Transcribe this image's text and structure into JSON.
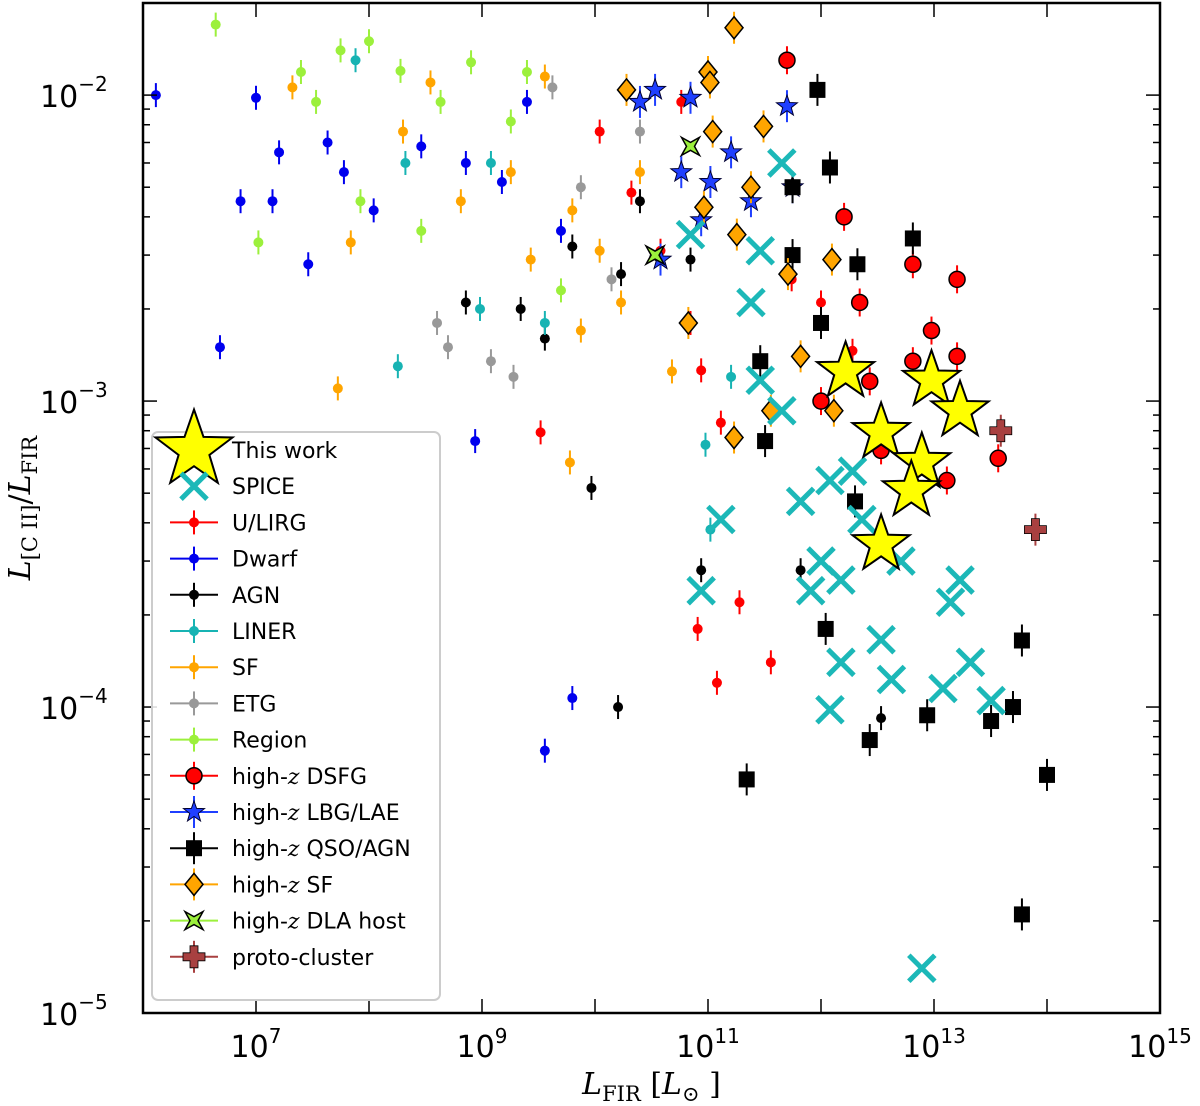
{
  "chart_data": {
    "type": "scatter",
    "xscale": "log",
    "yscale": "log",
    "xlim": [
      1000000.0,
      1000000000000000.0
    ],
    "ylim": [
      1e-05,
      0.02
    ],
    "grid": false,
    "legend_placement": "lower-left",
    "xlabel_parts": [
      {
        "t": "L",
        "i": true
      },
      {
        "t": "FIR",
        "sub": true
      },
      {
        "t": "  ["
      },
      {
        "t": "L",
        "i": true
      },
      {
        "t": "⊙",
        "sub": true
      },
      {
        "t": " ]"
      }
    ],
    "ylabel_parts": [
      {
        "t": "L",
        "i": true
      },
      {
        "t": "[C II]",
        "sub": true
      },
      {
        "t": "/"
      },
      {
        "t": "L",
        "i": true
      },
      {
        "t": "FIR",
        "sub": true
      }
    ],
    "xticks": [
      {
        "base": "10",
        "exp": "7",
        "v": 10000000.0
      },
      {
        "base": "10",
        "exp": "9",
        "v": 1000000000.0
      },
      {
        "base": "10",
        "exp": "11",
        "v": 100000000000.0
      },
      {
        "base": "10",
        "exp": "13",
        "v": 10000000000000.0
      },
      {
        "base": "10",
        "exp": "15",
        "v": 1000000000000000.0
      }
    ],
    "yticks": [
      {
        "base": "10",
        "exp": "−2",
        "v": 0.01
      },
      {
        "base": "10",
        "exp": "−3",
        "v": 0.001
      },
      {
        "base": "10",
        "exp": "−4",
        "v": 0.0001
      },
      {
        "base": "10",
        "exp": "−5",
        "v": 1e-05
      }
    ],
    "series": [
      {
        "name": "U/LIRG",
        "marker": "dot",
        "color": "#ff0000",
        "points": [
          [
            11000000000.0,
            0.0076
          ],
          [
            21000000000.0,
            0.0048
          ],
          [
            38000000000.0,
            0.0031
          ],
          [
            70000000000.0,
            0.0018
          ],
          [
            87000000000.0,
            0.00126
          ],
          [
            130000000000.0,
            0.00085
          ],
          [
            81000000000.0,
            0.00018
          ],
          [
            120000000000.0,
            0.00012
          ],
          [
            360000000000.0,
            0.00014
          ],
          [
            3300000000.0,
            0.00079
          ],
          [
            550000000000.0,
            0.0025
          ],
          [
            1000000000000.0,
            0.0021
          ],
          [
            1900000000000.0,
            0.00146
          ],
          [
            58000000000.0,
            0.0095
          ],
          [
            190000000000.0,
            0.00022
          ]
        ]
      },
      {
        "name": "Dwarf",
        "marker": "dot",
        "color": "#0000ee",
        "points": [
          [
            1300000.0,
            0.01
          ],
          [
            10000000.0,
            0.0098
          ],
          [
            16000000.0,
            0.0065
          ],
          [
            14000000.0,
            0.0045
          ],
          [
            29000000.0,
            0.0028
          ],
          [
            43000000.0,
            0.007
          ],
          [
            4800000.0,
            0.0015
          ],
          [
            870000000.0,
            0.00074
          ],
          [
            3600000000.0,
            7.2e-05
          ],
          [
            6300000000.0,
            0.000107
          ],
          [
            110000000.0,
            0.0042
          ],
          [
            290000000.0,
            0.0068
          ],
          [
            720000000.0,
            0.006
          ],
          [
            2500000000.0,
            0.0095
          ],
          [
            7300000.0,
            0.0045
          ],
          [
            60000000.0,
            0.0056
          ],
          [
            1500000000.0,
            0.0052
          ],
          [
            5000000000.0,
            0.0036
          ]
        ]
      },
      {
        "name": "AGN",
        "marker": "dot",
        "color": "#000000",
        "points": [
          [
            720000000.0,
            0.0021
          ],
          [
            3600000000.0,
            0.0016
          ],
          [
            9300000000.0,
            0.00052
          ],
          [
            16000000000.0,
            0.0001
          ],
          [
            6300000000.0,
            0.0032
          ],
          [
            17000000000.0,
            0.0026
          ],
          [
            70000000000.0,
            0.0029
          ],
          [
            2200000000.0,
            0.002
          ],
          [
            25000000000.0,
            0.0045
          ],
          [
            87000000000.0,
            0.00028
          ],
          [
            660000000000.0,
            0.00028
          ],
          [
            3400000000000.0,
            9.2e-05
          ]
        ]
      },
      {
        "name": "LINER",
        "marker": "dot",
        "color": "#17b3b3",
        "points": [
          [
            76000000.0,
            0.013
          ],
          [
            210000000.0,
            0.006
          ],
          [
            180000000.0,
            0.0013
          ],
          [
            960000000.0,
            0.002
          ],
          [
            3600000000.0,
            0.0018
          ],
          [
            95000000000.0,
            0.00072
          ],
          [
            105000000000.0,
            0.00038
          ],
          [
            160000000000.0,
            0.0012
          ],
          [
            1200000000.0,
            0.006
          ]
        ]
      },
      {
        "name": "SF",
        "marker": "dot",
        "color": "#ffa500",
        "points": [
          [
            21000000.0,
            0.0106
          ],
          [
            53000000.0,
            0.0011
          ],
          [
            6000000000.0,
            0.00063
          ],
          [
            350000000.0,
            0.011
          ],
          [
            200000000.0,
            0.0076
          ],
          [
            650000000.0,
            0.0045
          ],
          [
            1800000000.0,
            0.0056
          ],
          [
            3600000000.0,
            0.0115
          ],
          [
            6300000000.0,
            0.0042
          ],
          [
            11000000000.0,
            0.0031
          ],
          [
            17000000000.0,
            0.0021
          ],
          [
            25000000000.0,
            0.0056
          ],
          [
            7500000000.0,
            0.0017
          ],
          [
            69000000.0,
            0.0033
          ],
          [
            2700000000.0,
            0.0029
          ],
          [
            48000000000.0,
            0.00125
          ]
        ]
      },
      {
        "name": "ETG",
        "marker": "dot",
        "color": "#999999",
        "points": [
          [
            400000000.0,
            0.0018
          ],
          [
            500000000.0,
            0.0015
          ],
          [
            1200000000.0,
            0.00135
          ],
          [
            1900000000.0,
            0.0012
          ],
          [
            4200000000.0,
            0.0106
          ],
          [
            7500000000.0,
            0.005
          ],
          [
            14000000000.0,
            0.0025
          ],
          [
            25000000000.0,
            0.0076
          ]
        ]
      },
      {
        "name": "Region",
        "marker": "dot",
        "color": "#9cf03c",
        "points": [
          [
            4400000.0,
            0.017
          ],
          [
            10500000.0,
            0.0033
          ],
          [
            25000000.0,
            0.0119
          ],
          [
            56000000.0,
            0.014
          ],
          [
            100000000.0,
            0.015
          ],
          [
            190000000.0,
            0.012
          ],
          [
            430000000.0,
            0.0095
          ],
          [
            800000000.0,
            0.0128
          ],
          [
            34000000.0,
            0.0095
          ],
          [
            84000000.0,
            0.0045
          ],
          [
            290000000.0,
            0.0036
          ],
          [
            1800000000.0,
            0.0082
          ],
          [
            5000000000.0,
            0.0023
          ],
          [
            2500000000.0,
            0.0119
          ]
        ]
      },
      {
        "name": "high-z DSFG",
        "marker": "circle",
        "color": "#ff0000",
        "points": [
          [
            500000000000.0,
            0.013
          ],
          [
            1600000000000.0,
            0.004
          ],
          [
            6500000000000.0,
            0.0028
          ],
          [
            16000000000000.0,
            0.0025
          ],
          [
            2200000000000.0,
            0.0021
          ],
          [
            9500000000000.0,
            0.0017
          ],
          [
            16000000000000.0,
            0.0014
          ],
          [
            37000000000000.0,
            0.00065
          ],
          [
            2700000000000.0,
            0.00116
          ],
          [
            6500000000000.0,
            0.00135
          ],
          [
            1000000000000.0,
            0.001
          ],
          [
            13000000000000.0,
            0.00055
          ],
          [
            3400000000000.0,
            0.00069
          ]
        ]
      },
      {
        "name": "high-z LBG/LAE",
        "marker": "smallstar",
        "color": "#1f3fff",
        "points": [
          [
            25000000000.0,
            0.0095
          ],
          [
            34000000000.0,
            0.0104
          ],
          [
            70000000000.0,
            0.0098
          ],
          [
            500000000000.0,
            0.0092
          ],
          [
            58000000000.0,
            0.0056
          ],
          [
            105000000000.0,
            0.0052
          ],
          [
            160000000000.0,
            0.0065
          ],
          [
            240000000000.0,
            0.0045
          ],
          [
            38000000000.0,
            0.0029
          ],
          [
            87000000000.0,
            0.0039
          ],
          [
            560000000000.0,
            0.005
          ]
        ]
      },
      {
        "name": "high-z QSO/AGN",
        "marker": "square",
        "color": "#000000",
        "points": [
          [
            930000000000.0,
            0.0104
          ],
          [
            1200000000000.0,
            0.0058
          ],
          [
            560000000000.0,
            0.005
          ],
          [
            6500000000000.0,
            0.0034
          ],
          [
            2100000000000.0,
            0.0028
          ],
          [
            560000000000.0,
            0.003
          ],
          [
            1000000000000.0,
            0.0018
          ],
          [
            290000000000.0,
            0.00135
          ],
          [
            320000000000.0,
            0.00074
          ],
          [
            1100000000000.0,
            0.00018
          ],
          [
            2700000000000.0,
            7.8e-05
          ],
          [
            8700000000000.0,
            9.4e-05
          ],
          [
            32000000000000.0,
            9e-05
          ],
          [
            50000000000000.0,
            0.0001
          ],
          [
            60000000000000.0,
            0.000165
          ],
          [
            100000000000000.0,
            6e-05
          ],
          [
            60000000000000.0,
            2.1e-05
          ],
          [
            220000000000.0,
            5.8e-05
          ],
          [
            2000000000000.0,
            0.00047
          ]
        ]
      },
      {
        "name": "high-z SF",
        "marker": "diamond",
        "color": "#ffa500",
        "points": [
          [
            170000000000.0,
            0.0166
          ],
          [
            19000000000.0,
            0.0104
          ],
          [
            100000000000.0,
            0.0119
          ],
          [
            104000000000.0,
            0.011
          ],
          [
            110000000000.0,
            0.0076
          ],
          [
            310000000000.0,
            0.0079
          ],
          [
            92000000000.0,
            0.0043
          ],
          [
            240000000000.0,
            0.005
          ],
          [
            180000000000.0,
            0.0035
          ],
          [
            1250000000000.0,
            0.0029
          ],
          [
            67000000000.0,
            0.0018
          ],
          [
            510000000000.0,
            0.0026
          ],
          [
            660000000000.0,
            0.0014
          ],
          [
            360000000000.0,
            0.00093
          ],
          [
            1300000000000.0,
            0.00093
          ],
          [
            170000000000.0,
            0.00076
          ]
        ]
      },
      {
        "name": "high-z DLA host",
        "marker": "xfilled",
        "color": "#9cf03c",
        "points": [
          [
            70000000000.0,
            0.0068
          ],
          [
            34000000000.0,
            0.003
          ]
        ]
      },
      {
        "name": "proto-cluster",
        "marker": "plus",
        "color": "#a84040",
        "points": [
          [
            39000000000000.0,
            0.0008
          ],
          [
            79000000000000.0,
            0.00038
          ]
        ]
      },
      {
        "name": "SPICE",
        "marker": "x",
        "color": "#1cb8b8",
        "points": [
          [
            1200000000000.0,
            9.8e-05
          ],
          [
            7800000000000.0,
            1.4e-05
          ],
          [
            450000000000.0,
            0.006
          ],
          [
            70000000000.0,
            0.0035
          ],
          [
            130000000000.0,
            0.00041
          ],
          [
            87000000000.0,
            0.00024
          ],
          [
            290000000000.0,
            0.00117
          ],
          [
            450000000000.0,
            0.00093
          ],
          [
            660000000000.0,
            0.00047
          ],
          [
            1200000000000.0,
            0.00055
          ],
          [
            1900000000000.0,
            0.00059
          ],
          [
            1000000000000.0,
            0.0003
          ],
          [
            1500000000000.0,
            0.00026
          ],
          [
            2300000000000.0,
            0.00041
          ],
          [
            3400000000000.0,
            0.000166
          ],
          [
            4200000000000.0,
            0.000123
          ],
          [
            14000000000000.0,
            0.00022
          ],
          [
            17000000000000.0,
            0.00026
          ],
          [
            21000000000000.0,
            0.00014
          ],
          [
            32000000000000.0,
            0.000105
          ],
          [
            12000000000000.0,
            0.000115
          ],
          [
            1500000000000.0,
            0.00014
          ],
          [
            240000000000.0,
            0.0021
          ],
          [
            290000000000.0,
            0.0031
          ],
          [
            810000000000.0,
            0.00024
          ],
          [
            5100000000000.0,
            0.0003
          ]
        ]
      },
      {
        "name": "This work",
        "marker": "bigstar",
        "color": "#ffff00",
        "points": [
          [
            1650000000000.0,
            0.00125
          ],
          [
            9500000000000.0,
            0.00117
          ],
          [
            17000000000000.0,
            0.00093
          ],
          [
            3400000000000.0,
            0.00079
          ],
          [
            7800000000000.0,
            0.00063
          ],
          [
            6300000000000.0,
            0.00051
          ],
          [
            3400000000000.0,
            0.00034
          ]
        ]
      }
    ],
    "legend_order": [
      "This work",
      "SPICE",
      "U/LIRG",
      "Dwarf",
      "AGN",
      "LINER",
      "SF",
      "ETG",
      "Region",
      "high-z DSFG",
      "high-z LBG/LAE",
      "high-z QSO/AGN",
      "high-z SF",
      "high-z DLA host",
      "proto-cluster"
    ]
  }
}
